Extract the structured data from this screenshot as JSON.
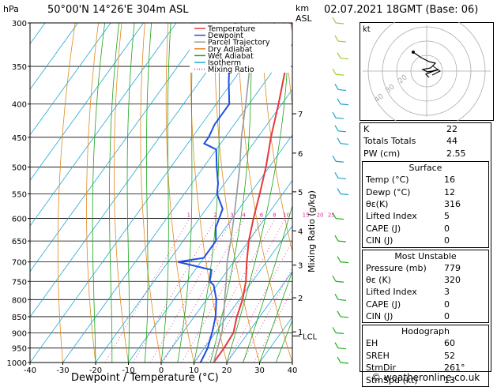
{
  "header": {
    "hpa": "hPa",
    "location": "50°00'N 14°26'E 304m ASL",
    "km": "km",
    "asl": "ASL",
    "datetime": "02.07.2021 18GMT (Base: 06)"
  },
  "legend": [
    "Temperature",
    "Dewpoint",
    "Parcel Trajectory",
    "Dry Adiabat",
    "Wet Adiabat",
    "Isotherm",
    "Mixing Ratio"
  ],
  "colors": {
    "temperature": "#e8383a",
    "dewpoint": "#1f4fe0",
    "parcel": "#9a9a9a",
    "dry_adiabat": "#e08a20",
    "wet_adiabat": "#1aa51a",
    "isotherm": "#20a8d8",
    "mixing_ratio": "#e0259a"
  },
  "chart_data": {
    "type": "line",
    "xlabel": "Dewpoint / Temperature (°C)",
    "ylabel": "Mixing Ratio (g/kg)",
    "x_ticks": [
      "-40",
      "-30",
      "-20",
      "-10",
      "0",
      "10",
      "20",
      "30",
      "40"
    ],
    "xlim": [
      -40,
      40
    ],
    "pressure_ticks": [
      "300",
      "350",
      "400",
      "450",
      "500",
      "550",
      "600",
      "650",
      "700",
      "750",
      "800",
      "850",
      "900",
      "950",
      "1000"
    ],
    "ylim": [
      1000,
      300
    ],
    "km_ticks": [
      {
        "label": "7",
        "p": 414
      },
      {
        "label": "6",
        "p": 476
      },
      {
        "label": "5",
        "p": 546
      },
      {
        "label": "4",
        "p": 627
      },
      {
        "label": "3",
        "p": 708
      },
      {
        "label": "2",
        "p": 795
      },
      {
        "label": "1",
        "p": 897
      }
    ],
    "lcl": {
      "label": "LCL",
      "p": 910
    },
    "mixing_ratio_labels": [
      "1",
      "2",
      "3",
      "4",
      "6",
      "8",
      "10",
      "15",
      "20",
      "25"
    ],
    "series": [
      {
        "name": "Temperature",
        "points": [
          [
            16,
            1000
          ],
          [
            16,
            950
          ],
          [
            15.5,
            900
          ],
          [
            13,
            850
          ],
          [
            11,
            800
          ],
          [
            8,
            750
          ],
          [
            4,
            700
          ],
          [
            0,
            650
          ],
          [
            -3.5,
            600
          ],
          [
            -7,
            550
          ],
          [
            -11,
            500
          ],
          [
            -16,
            450
          ],
          [
            -21,
            400
          ],
          [
            -27,
            350
          ],
          [
            -35,
            300
          ]
        ]
      },
      {
        "name": "Dewpoint",
        "points": [
          [
            12,
            1000
          ],
          [
            11,
            950
          ],
          [
            9,
            900
          ],
          [
            6.5,
            850
          ],
          [
            3,
            800
          ],
          [
            -1,
            760
          ],
          [
            -3,
            750
          ],
          [
            -5,
            720
          ],
          [
            -17,
            700
          ],
          [
            -10,
            690
          ],
          [
            -10,
            650
          ],
          [
            -13,
            620
          ],
          [
            -15,
            580
          ],
          [
            -20,
            550
          ],
          [
            -22,
            530
          ],
          [
            -26,
            500
          ],
          [
            -30,
            470
          ],
          [
            -35,
            460
          ],
          [
            -35,
            450
          ],
          [
            -36,
            430
          ],
          [
            -36,
            400
          ],
          [
            -41,
            370
          ],
          [
            -46,
            340
          ],
          [
            -52,
            300
          ]
        ]
      },
      {
        "name": "Parcel Trajectory",
        "points": [
          [
            16,
            1000
          ],
          [
            14,
            950
          ],
          [
            12,
            900
          ],
          [
            9,
            850
          ],
          [
            5.5,
            800
          ],
          [
            2,
            750
          ],
          [
            -2,
            700
          ],
          [
            -5.5,
            650
          ],
          [
            -9.5,
            600
          ],
          [
            -14,
            550
          ],
          [
            -19,
            500
          ],
          [
            -25,
            450
          ],
          [
            -31,
            400
          ],
          [
            -38,
            350
          ],
          [
            -47,
            300
          ]
        ]
      }
    ]
  },
  "hodograph": {
    "label": "kt",
    "ring_labels": [
      "40",
      "30",
      "20"
    ]
  },
  "indices": {
    "rows": [
      {
        "label": "K",
        "value": "22"
      },
      {
        "label": "Totals Totals",
        "value": "44"
      },
      {
        "label": "PW (cm)",
        "value": "2.55"
      }
    ],
    "surface": {
      "title": "Surface",
      "rows": [
        {
          "label": "Temp (°C)",
          "value": "16"
        },
        {
          "label": "Dewp (°C)",
          "value": "12"
        },
        {
          "label": "θε(K)",
          "value": "316"
        },
        {
          "label": "Lifted Index",
          "value": "5"
        },
        {
          "label": "CAPE (J)",
          "value": "0"
        },
        {
          "label": "CIN (J)",
          "value": "0"
        }
      ]
    },
    "most_unstable": {
      "title": "Most Unstable",
      "rows": [
        {
          "label": "Pressure (mb)",
          "value": "779"
        },
        {
          "label": "θε (K)",
          "value": "320"
        },
        {
          "label": "Lifted Index",
          "value": "3"
        },
        {
          "label": "CAPE (J)",
          "value": "0"
        },
        {
          "label": "CIN (J)",
          "value": "0"
        }
      ]
    },
    "hodograph": {
      "title": "Hodograph",
      "rows": [
        {
          "label": "EH",
          "value": "60"
        },
        {
          "label": "SREH",
          "value": "52"
        },
        {
          "label": "StmDir",
          "value": "261°"
        },
        {
          "label": "StmSpd (kt)",
          "value": "13"
        }
      ]
    }
  },
  "copyright": "© weatheronline.co.uk"
}
